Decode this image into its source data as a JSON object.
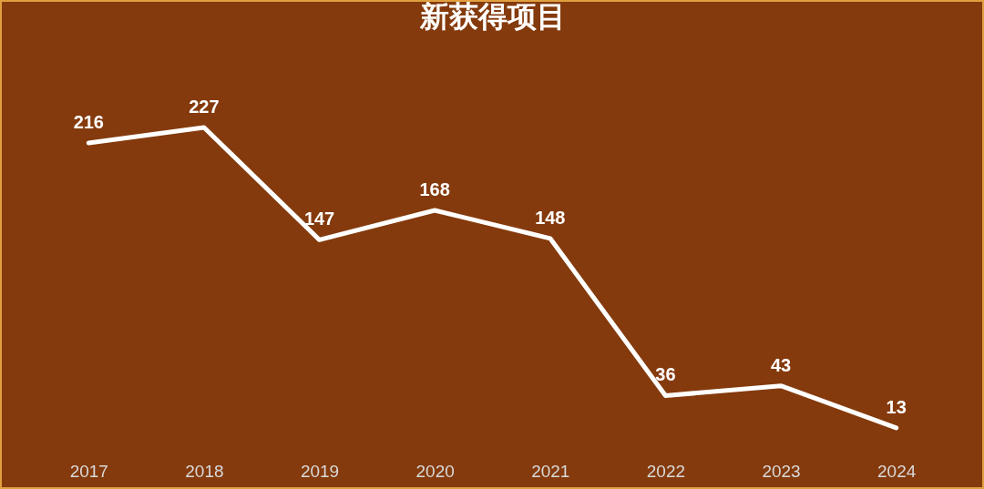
{
  "chart_data": {
    "type": "line",
    "title": "新获得项目",
    "categories": [
      "2017",
      "2018",
      "2019",
      "2020",
      "2021",
      "2022",
      "2023",
      "2024"
    ],
    "series": [
      {
        "color": "#ffffff",
        "values": [
          216,
          227,
          147,
          168,
          148,
          36,
          43,
          13
        ]
      }
    ],
    "data_labels": true,
    "line_style": "solid",
    "tick_labels": "x"
  }
}
